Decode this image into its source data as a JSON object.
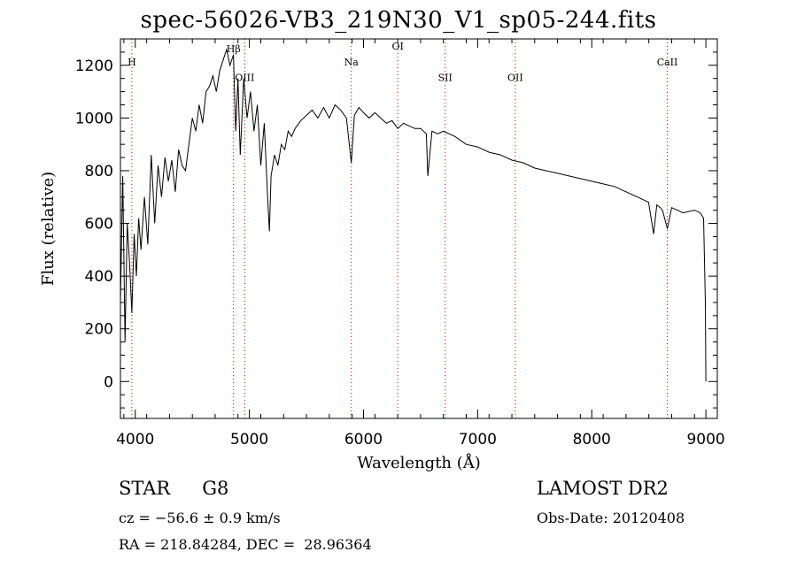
{
  "header": {
    "title": "spec-56026-VB3_219N30_V1_sp05-244.fits"
  },
  "info": {
    "object_class": "STAR",
    "subclass": "G8",
    "survey": "LAMOST DR2",
    "cz": "cz = −56.6 ± 0.9 km/s",
    "radec": "RA = 218.84284, DEC =  28.96364",
    "obs_date": "Obs-Date: 20120408"
  },
  "chart_data": {
    "type": "line",
    "xlabel": "Wavelength (Å)",
    "ylabel": "Flux (relative)",
    "xlim": [
      3870,
      9100
    ],
    "ylim": [
      -140,
      1300
    ],
    "xticks": [
      4000,
      5000,
      6000,
      7000,
      8000,
      9000
    ],
    "yticks": [
      0,
      200,
      400,
      600,
      800,
      1000,
      1200
    ],
    "grid": false,
    "legend": "none",
    "line_color": "#000000",
    "marker_color": "#cc0000",
    "x": [
      3870,
      3890,
      3910,
      3930,
      3950,
      3970,
      3990,
      4010,
      4030,
      4050,
      4080,
      4110,
      4140,
      4170,
      4200,
      4230,
      4260,
      4290,
      4320,
      4350,
      4380,
      4410,
      4440,
      4470,
      4500,
      4530,
      4560,
      4590,
      4620,
      4650,
      4680,
      4710,
      4740,
      4770,
      4800,
      4830,
      4860,
      4880,
      4900,
      4920,
      4950,
      4980,
      5010,
      5040,
      5070,
      5100,
      5130,
      5160,
      5175,
      5190,
      5220,
      5250,
      5280,
      5310,
      5340,
      5370,
      5400,
      5450,
      5500,
      5550,
      5600,
      5650,
      5700,
      5750,
      5800,
      5850,
      5893,
      5920,
      5960,
      6000,
      6050,
      6100,
      6150,
      6200,
      6250,
      6300,
      6350,
      6400,
      6450,
      6500,
      6550,
      6563,
      6600,
      6650,
      6700,
      6800,
      6900,
      7000,
      7100,
      7200,
      7300,
      7400,
      7500,
      7600,
      7700,
      7800,
      7900,
      8000,
      8100,
      8200,
      8300,
      8400,
      8450,
      8498,
      8542,
      8570,
      8600,
      8620,
      8662,
      8700,
      8750,
      8800,
      8850,
      8900,
      8950,
      8980,
      8995,
      9000
    ],
    "y": [
      300,
      780,
      150,
      600,
      450,
      260,
      560,
      400,
      620,
      500,
      700,
      520,
      860,
      600,
      820,
      700,
      850,
      760,
      840,
      720,
      880,
      820,
      800,
      900,
      1000,
      950,
      1050,
      980,
      1100,
      1120,
      1160,
      1100,
      1180,
      1220,
      1260,
      1200,
      1240,
      950,
      1150,
      860,
      1150,
      1000,
      1100,
      950,
      1050,
      820,
      980,
      700,
      570,
      780,
      860,
      820,
      900,
      880,
      950,
      930,
      960,
      990,
      1010,
      1030,
      1000,
      1040,
      1000,
      1050,
      1030,
      1000,
      830,
      1010,
      1040,
      1020,
      1000,
      1020,
      1000,
      980,
      990,
      960,
      980,
      970,
      960,
      960,
      940,
      780,
      950,
      940,
      950,
      930,
      900,
      890,
      870,
      860,
      840,
      830,
      810,
      800,
      790,
      780,
      770,
      760,
      750,
      740,
      720,
      700,
      690,
      680,
      560,
      670,
      660,
      650,
      580,
      660,
      650,
      640,
      645,
      650,
      640,
      620,
      300,
      0
    ],
    "line_markers": [
      {
        "label": "H",
        "x": 3970,
        "y": 1200
      },
      {
        "label": "Hβ",
        "x": 4861,
        "y": 1250
      },
      {
        "label": "OIII",
        "x": 4959,
        "y": 1140
      },
      {
        "label": "Na",
        "x": 5893,
        "y": 1200
      },
      {
        "label": "OI",
        "x": 6300,
        "y": 1260
      },
      {
        "label": "SII",
        "x": 6716,
        "y": 1140
      },
      {
        "label": "OII",
        "x": 7330,
        "y": 1140
      },
      {
        "label": "CaII",
        "x": 8662,
        "y": 1200
      }
    ]
  }
}
